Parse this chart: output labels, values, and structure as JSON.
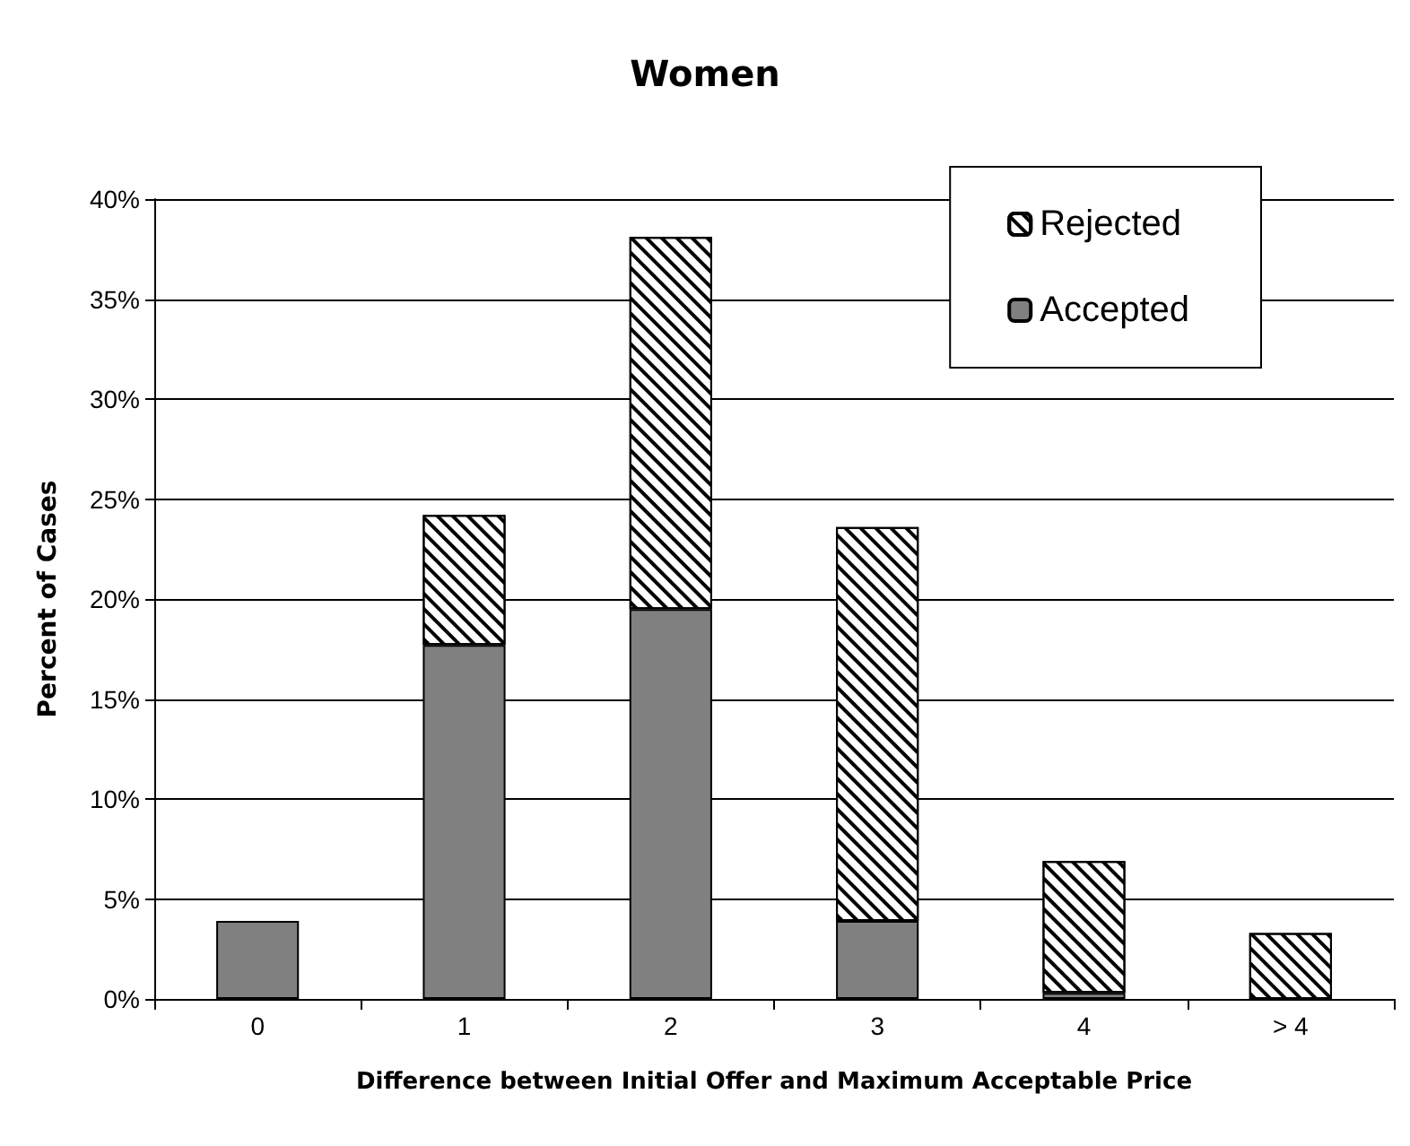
{
  "chart_data": {
    "type": "bar",
    "title": "Women",
    "xlabel": "Difference between Initial Offer and Maximum Acceptable Price",
    "ylabel": "Percent of Cases",
    "categories": [
      "0",
      "1",
      "2",
      "3",
      "4",
      "> 4"
    ],
    "stacked": true,
    "series": [
      {
        "name": "Accepted",
        "color": "#808080",
        "values": [
          3.9,
          17.7,
          19.5,
          3.9,
          0.3,
          null
        ]
      },
      {
        "name": "Rejected",
        "color": "#ffffff",
        "values": [
          null,
          6.5,
          18.6,
          19.7,
          6.6,
          3.3
        ]
      }
    ],
    "ylim": [
      0,
      40
    ],
    "yticks": [
      {
        "value": 0,
        "label": "0%"
      },
      {
        "value": 5,
        "label": "5%"
      },
      {
        "value": 10,
        "label": "10%"
      },
      {
        "value": 15,
        "label": "15%"
      },
      {
        "value": 20,
        "label": "20%"
      },
      {
        "value": 25,
        "label": "25%"
      },
      {
        "value": 30,
        "label": "30%"
      },
      {
        "value": 35,
        "label": "35%"
      },
      {
        "value": 40,
        "label": "40%"
      }
    ],
    "grid": "y",
    "legend": "top right"
  }
}
